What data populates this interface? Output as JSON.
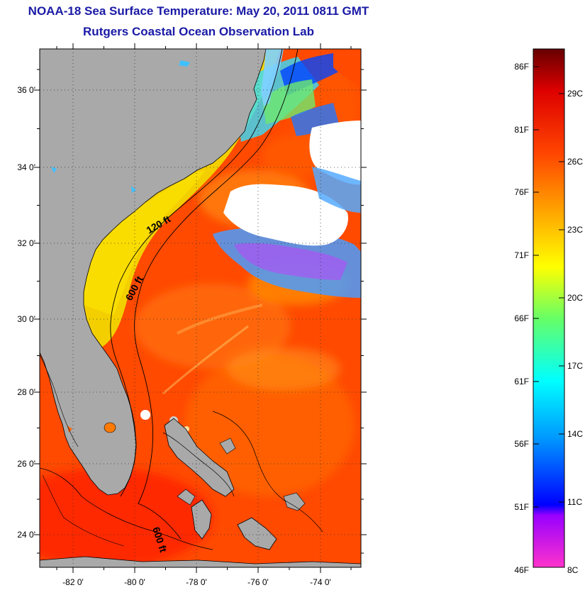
{
  "title": {
    "line1": "NOAA-18 Sea Surface Temperature:  May 20, 2011 0811 GMT",
    "line2": "Rutgers Coastal Ocean Observation Lab"
  },
  "map": {
    "lat_ticks": [
      "36 0'",
      "34 0'",
      "32 0'",
      "30 0'",
      "28 0'",
      "26 0'",
      "24 0'"
    ],
    "lon_ticks": [
      "-82 0'",
      "-80 0'",
      "-78 0'",
      "-76 0'",
      "-74 0'"
    ],
    "contours": [
      "120 ft",
      "600 ft",
      "600 ft"
    ],
    "colors": {
      "land": "#a9a9a9",
      "cloud": "#ffffff",
      "ocean_warm": "#ff4a00",
      "ocean_shelf": "#f5d200"
    }
  },
  "colorbar": {
    "fahrenheit_labels": [
      "86F",
      "81F",
      "76F",
      "71F",
      "66F",
      "61F",
      "56F",
      "51F",
      "46F"
    ],
    "celsius_labels": [
      "29C",
      "26C",
      "23C",
      "20C",
      "17C",
      "14C",
      "11C",
      "8C"
    ],
    "range_f": [
      46,
      88
    ],
    "colors": [
      "#ff33cc",
      "#9900ff",
      "#0000ff",
      "#0099ff",
      "#00ffff",
      "#66ff66",
      "#ffff00",
      "#ffaa00",
      "#ff4400",
      "#dd0000",
      "#660000"
    ]
  }
}
